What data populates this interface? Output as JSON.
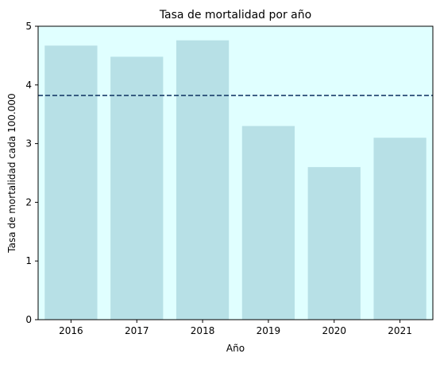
{
  "chart_data": {
    "type": "bar",
    "title": "Tasa de mortalidad por año",
    "xlabel": "Año",
    "ylabel": "Tasa de mortalidad cada 100.000",
    "categories": [
      "2016",
      "2017",
      "2018",
      "2019",
      "2020",
      "2021"
    ],
    "values": [
      4.67,
      4.48,
      4.76,
      3.3,
      2.6,
      3.1
    ],
    "ylim": [
      0,
      5
    ],
    "yticks": [
      0,
      1,
      2,
      3,
      4,
      5
    ],
    "reference_line": {
      "value": 3.82,
      "style": "dashed",
      "color": "#1b3f6b"
    },
    "bar_color": "#b7e0e6",
    "plot_background": "#e0ffff",
    "grid": false,
    "legend": "none"
  }
}
